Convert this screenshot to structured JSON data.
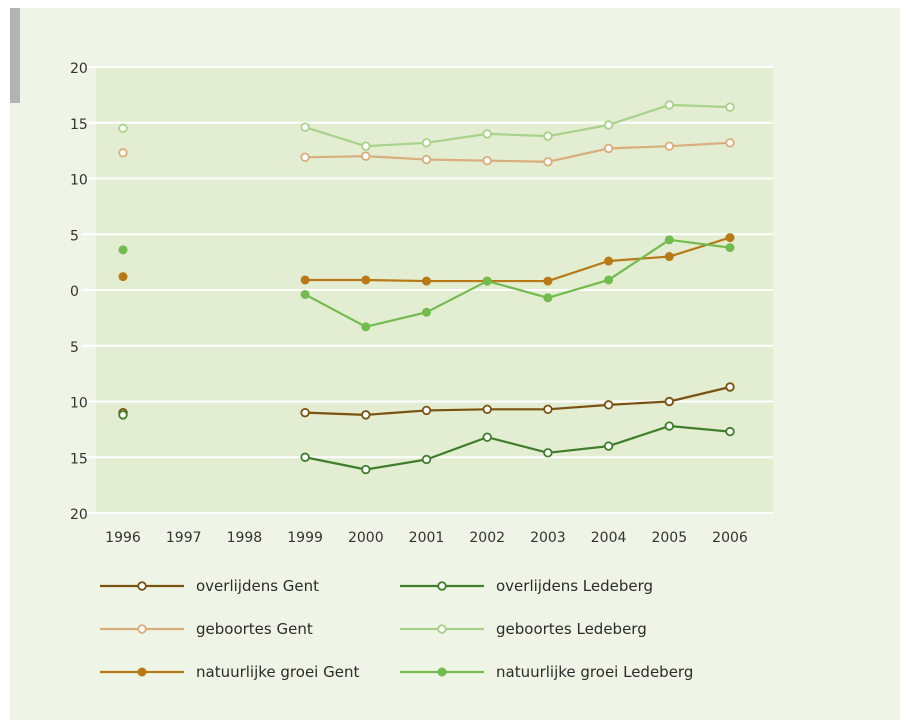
{
  "chart_data": {
    "type": "line",
    "x": [
      "1996",
      "1997",
      "1998",
      "1999",
      "2000",
      "2001",
      "2002",
      "2003",
      "2004",
      "2005",
      "2006"
    ],
    "y_tick_labels": [
      "20",
      "15",
      "10",
      "5",
      "0",
      "5",
      "10",
      "15",
      "20"
    ],
    "y_tick_values": [
      20,
      15,
      10,
      5,
      0,
      -5,
      -10,
      -15,
      -20
    ],
    "ylim": [
      -20,
      20
    ],
    "grid": "horizontal",
    "legend_position": "bottom",
    "series": [
      {
        "name": "overlijdens Gent",
        "color": "#7a5212",
        "marker": "open",
        "values": [
          -11.0,
          null,
          null,
          -11.0,
          -11.2,
          -10.8,
          -10.7,
          -10.7,
          -10.3,
          -10.0,
          -8.7
        ]
      },
      {
        "name": "overlijdens Ledeberg",
        "color": "#3f7f2c",
        "marker": "open",
        "values": [
          -11.2,
          null,
          null,
          -15.0,
          -16.1,
          -15.2,
          -13.2,
          -14.6,
          -14.0,
          -12.2,
          -12.7
        ]
      },
      {
        "name": "geboortes Gent",
        "color": "#d9ad7c",
        "marker": "open",
        "values": [
          12.3,
          null,
          null,
          11.9,
          12.0,
          11.7,
          11.6,
          11.5,
          12.7,
          12.9,
          13.2
        ]
      },
      {
        "name": "geboortes Ledeberg",
        "color": "#a8d28a",
        "marker": "open",
        "values": [
          14.5,
          null,
          null,
          14.6,
          12.9,
          13.2,
          14.0,
          13.8,
          14.8,
          16.6,
          16.4
        ]
      },
      {
        "name": "natuurlijke groei Gent",
        "color": "#b87a16",
        "marker": "filled",
        "values": [
          1.2,
          null,
          null,
          0.9,
          0.9,
          0.8,
          0.8,
          0.8,
          2.6,
          3.0,
          4.7
        ]
      },
      {
        "name": "natuurlijke groei Ledeberg",
        "color": "#72bc4e",
        "marker": "filled",
        "values": [
          3.6,
          null,
          null,
          -0.4,
          -3.3,
          -2.0,
          0.8,
          -0.7,
          0.9,
          4.5,
          3.8
        ]
      }
    ]
  }
}
